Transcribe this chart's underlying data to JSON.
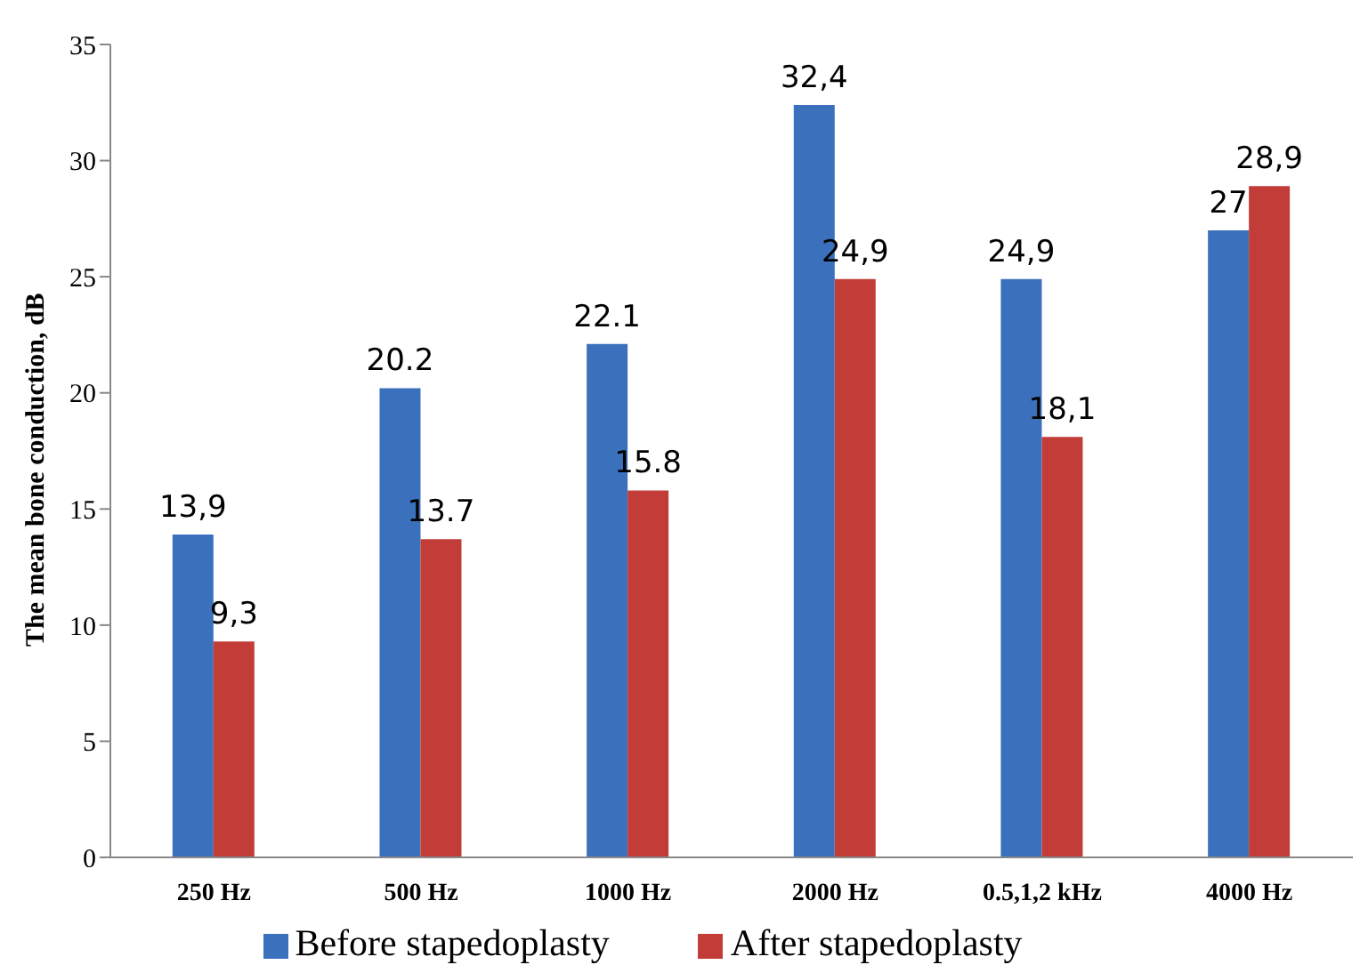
{
  "chart_data": {
    "type": "bar",
    "ylabel": "The mean bone conduction, dB",
    "categories": [
      "250 Hz",
      "500 Hz",
      "1000 Hz",
      "2000 Hz",
      "0.5,1,2 kHz",
      "4000 Hz"
    ],
    "series": [
      {
        "name": "Before stapedoplasty",
        "color": "#3a70bc",
        "values": [
          13.9,
          20.2,
          22.1,
          32.4,
          24.9,
          27
        ],
        "value_labels": [
          "13,9",
          "20.2",
          "22.1",
          "32,4",
          "24,9",
          "27"
        ]
      },
      {
        "name": "After stapedoplasty",
        "color": "#c23d37",
        "values": [
          9.3,
          13.7,
          15.8,
          24.9,
          18.1,
          28.9
        ],
        "value_labels": [
          "9,3",
          "13.7",
          "15.8",
          "24,9",
          "18,1",
          "28,9"
        ]
      }
    ],
    "ylim": [
      0,
      35
    ],
    "yticks": [
      0,
      5,
      10,
      15,
      20,
      25,
      30,
      35
    ],
    "grid": false,
    "legend": "bottom"
  }
}
